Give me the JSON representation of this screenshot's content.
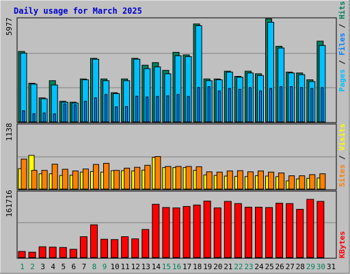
{
  "title": "Daily usage for March 2025",
  "colors": {
    "background": "#C0C0C0",
    "plot_bg": "#C0C0C0",
    "title": "#0000CC",
    "hits": "#00805C",
    "files": "#0080FF",
    "pages": "#00C0FF",
    "visits": "#FFFF00",
    "sites": "#FF8000",
    "kbytes": "#FF0000",
    "weekend": "#00805C",
    "weekday": "#000000"
  },
  "chart_data": [
    {
      "type": "bar",
      "name": "hits-files-pages",
      "max_label": "5977",
      "series": [
        {
          "name": "Hits",
          "values": [
            4100,
            2250,
            1400,
            2400,
            1200,
            1150,
            2500,
            3700,
            2500,
            1700,
            2500,
            3700,
            3300,
            3450,
            3000,
            4050,
            3900,
            5700,
            2500,
            2500,
            2950,
            2650,
            2950,
            2800,
            6000,
            4400,
            2900,
            2850,
            2450,
            4700,
            0
          ]
        },
        {
          "name": "Files",
          "values": [
            4000,
            2200,
            1350,
            2150,
            1150,
            1100,
            2450,
            3650,
            2400,
            1650,
            2400,
            3650,
            3100,
            3200,
            2800,
            3850,
            3800,
            5600,
            2400,
            2450,
            2900,
            2600,
            2850,
            2700,
            5800,
            4300,
            2850,
            2750,
            2350,
            4450,
            0
          ]
        },
        {
          "name": "Pages",
          "values": [
            650,
            480,
            520,
            470,
            1050,
            1000,
            1200,
            1400,
            1600,
            880,
            900,
            1500,
            1450,
            1480,
            1520,
            1600,
            1480,
            2000,
            2050,
            1800,
            1950,
            1900,
            2000,
            1800,
            1950,
            2050,
            2050,
            2000,
            1950,
            2000,
            0
          ]
        }
      ],
      "ylim": [
        0,
        5977
      ],
      "legend": [
        "Pages",
        "Files",
        "Hits"
      ]
    },
    {
      "type": "bar",
      "name": "visits-sites",
      "max_label": "1138",
      "series": [
        {
          "name": "Visits",
          "values": [
            530,
            330,
            330,
            440,
            350,
            320,
            355,
            435,
            455,
            330,
            370,
            385,
            420,
            575,
            400,
            400,
            400,
            395,
            305,
            300,
            320,
            325,
            305,
            320,
            300,
            285,
            235,
            235,
            255,
            270,
            0
          ]
        },
        {
          "name": "Sites",
          "values": [
            360,
            595,
            270,
            270,
            240,
            245,
            300,
            310,
            300,
            325,
            325,
            320,
            335,
            560,
            380,
            380,
            380,
            330,
            250,
            240,
            230,
            225,
            220,
            235,
            230,
            220,
            145,
            180,
            190,
            195,
            0
          ]
        }
      ],
      "ylim": [
        0,
        1138
      ],
      "legend": [
        "Sites",
        "Visits"
      ]
    },
    {
      "type": "bar",
      "name": "kbytes",
      "max_label": "161716",
      "series": [
        {
          "name": "KBytes",
          "values": [
            17000,
            15000,
            30000,
            29000,
            28000,
            23000,
            58000,
            91000,
            51000,
            50000,
            58000,
            52000,
            78000,
            148000,
            139000,
            138000,
            142000,
            146000,
            157000,
            138000,
            156000,
            150000,
            140000,
            140000,
            139000,
            151000,
            150000,
            134000,
            161700,
            156000,
            0
          ]
        }
      ],
      "ylim": [
        0,
        161716
      ],
      "legend": [
        "KBytes"
      ]
    }
  ],
  "x_labels": [
    "1",
    "2",
    "3",
    "4",
    "5",
    "6",
    "7",
    "8",
    "9",
    "10",
    "11",
    "12",
    "13",
    "14",
    "15",
    "16",
    "17",
    "18",
    "19",
    "20",
    "21",
    "22",
    "23",
    "24",
    "25",
    "26",
    "27",
    "28",
    "29",
    "30",
    "31"
  ],
  "weekend_days": [
    1,
    2,
    8,
    9,
    15,
    16,
    22,
    23,
    29,
    30
  ]
}
